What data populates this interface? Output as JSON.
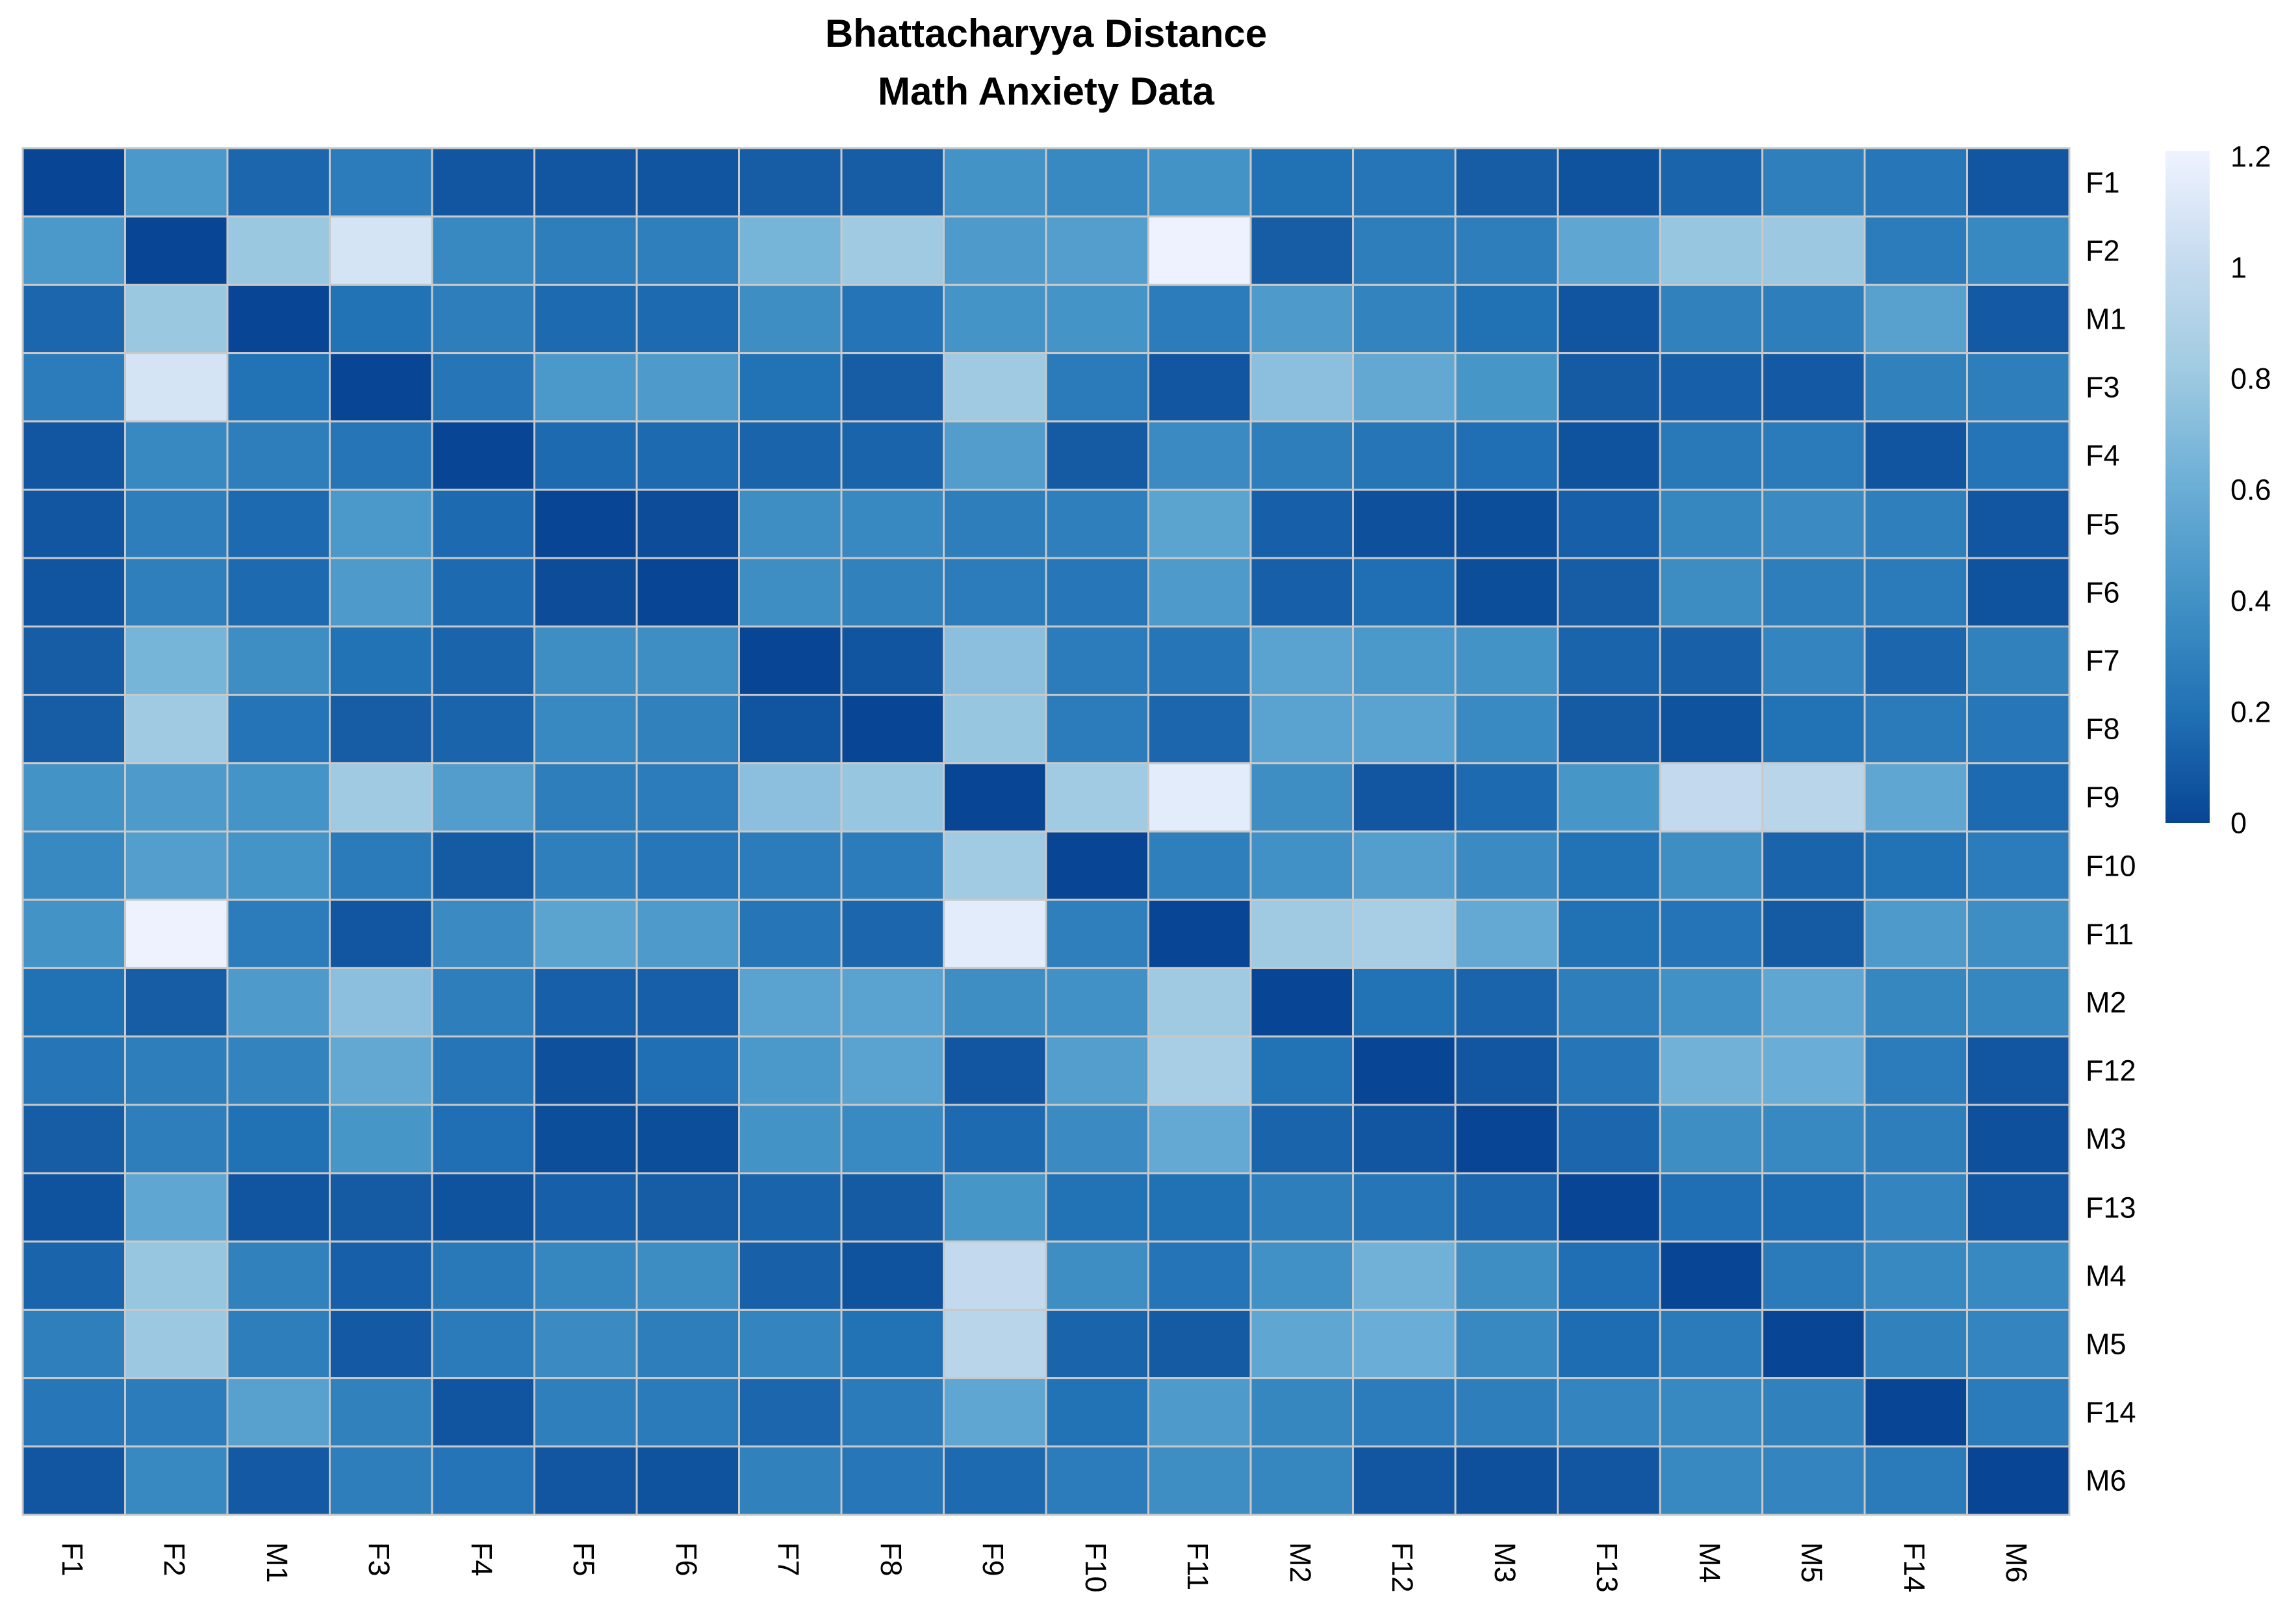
{
  "title": {
    "line1": "Bhattacharyya Distance",
    "line2": "Math Anxiety Data"
  },
  "chart_data": {
    "type": "heatmap",
    "title": "Bhattacharyya Distance",
    "subtitle": "Math Anxiety Data",
    "row_labels": [
      "F1",
      "F2",
      "M1",
      "F3",
      "F4",
      "F5",
      "F6",
      "F7",
      "F8",
      "F9",
      "F10",
      "F11",
      "M2",
      "F12",
      "M3",
      "F13",
      "M4",
      "M5",
      "F14",
      "M6"
    ],
    "col_labels": [
      "F1",
      "F2",
      "M1",
      "F3",
      "F4",
      "F5",
      "F6",
      "F7",
      "F8",
      "F9",
      "F10",
      "F11",
      "M2",
      "F12",
      "M3",
      "F13",
      "M4",
      "M5",
      "F14",
      "M6"
    ],
    "matrix": [
      [
        0.0,
        0.45,
        0.15,
        0.27,
        0.08,
        0.08,
        0.07,
        0.11,
        0.11,
        0.41,
        0.34,
        0.41,
        0.2,
        0.23,
        0.11,
        0.06,
        0.14,
        0.29,
        0.24,
        0.08
      ],
      [
        0.45,
        0.0,
        0.79,
        1.08,
        0.34,
        0.28,
        0.29,
        0.65,
        0.81,
        0.46,
        0.49,
        1.2,
        0.11,
        0.28,
        0.28,
        0.55,
        0.78,
        0.8,
        0.27,
        0.34
      ],
      [
        0.15,
        0.79,
        0.0,
        0.21,
        0.28,
        0.17,
        0.17,
        0.38,
        0.22,
        0.42,
        0.42,
        0.27,
        0.46,
        0.31,
        0.2,
        0.07,
        0.3,
        0.28,
        0.51,
        0.09
      ],
      [
        0.27,
        1.08,
        0.21,
        0.0,
        0.23,
        0.45,
        0.46,
        0.21,
        0.11,
        0.81,
        0.26,
        0.08,
        0.73,
        0.56,
        0.43,
        0.1,
        0.12,
        0.09,
        0.3,
        0.28
      ],
      [
        0.08,
        0.34,
        0.28,
        0.23,
        0.0,
        0.17,
        0.17,
        0.14,
        0.14,
        0.48,
        0.1,
        0.36,
        0.28,
        0.23,
        0.19,
        0.06,
        0.25,
        0.26,
        0.07,
        0.22
      ],
      [
        0.08,
        0.28,
        0.17,
        0.45,
        0.17,
        0.0,
        0.03,
        0.38,
        0.34,
        0.28,
        0.29,
        0.53,
        0.12,
        0.05,
        0.04,
        0.12,
        0.33,
        0.36,
        0.29,
        0.08
      ],
      [
        0.07,
        0.29,
        0.17,
        0.46,
        0.17,
        0.03,
        0.0,
        0.38,
        0.3,
        0.27,
        0.24,
        0.46,
        0.12,
        0.19,
        0.04,
        0.11,
        0.37,
        0.28,
        0.26,
        0.06
      ],
      [
        0.11,
        0.65,
        0.38,
        0.21,
        0.14,
        0.38,
        0.38,
        0.0,
        0.07,
        0.73,
        0.27,
        0.23,
        0.52,
        0.45,
        0.41,
        0.14,
        0.13,
        0.32,
        0.15,
        0.3
      ],
      [
        0.11,
        0.81,
        0.22,
        0.11,
        0.14,
        0.34,
        0.3,
        0.07,
        0.0,
        0.78,
        0.27,
        0.15,
        0.52,
        0.52,
        0.35,
        0.1,
        0.06,
        0.21,
        0.26,
        0.24
      ],
      [
        0.41,
        0.46,
        0.42,
        0.81,
        0.48,
        0.28,
        0.27,
        0.73,
        0.78,
        0.0,
        0.82,
        1.15,
        0.38,
        0.08,
        0.17,
        0.43,
        0.99,
        0.94,
        0.55,
        0.17
      ],
      [
        0.34,
        0.49,
        0.42,
        0.26,
        0.1,
        0.29,
        0.24,
        0.27,
        0.27,
        0.82,
        0.0,
        0.29,
        0.4,
        0.49,
        0.36,
        0.21,
        0.38,
        0.14,
        0.21,
        0.27
      ],
      [
        0.41,
        1.2,
        0.27,
        0.08,
        0.36,
        0.53,
        0.46,
        0.23,
        0.15,
        1.15,
        0.29,
        0.0,
        0.81,
        0.85,
        0.57,
        0.2,
        0.22,
        0.1,
        0.46,
        0.38
      ],
      [
        0.2,
        0.11,
        0.46,
        0.73,
        0.28,
        0.12,
        0.12,
        0.52,
        0.52,
        0.38,
        0.4,
        0.81,
        0.0,
        0.21,
        0.14,
        0.28,
        0.4,
        0.55,
        0.33,
        0.33
      ],
      [
        0.23,
        0.28,
        0.31,
        0.56,
        0.23,
        0.05,
        0.19,
        0.45,
        0.52,
        0.08,
        0.49,
        0.85,
        0.21,
        0.0,
        0.08,
        0.23,
        0.63,
        0.6,
        0.27,
        0.08
      ],
      [
        0.11,
        0.28,
        0.2,
        0.43,
        0.19,
        0.04,
        0.04,
        0.41,
        0.35,
        0.17,
        0.36,
        0.57,
        0.14,
        0.08,
        0.0,
        0.15,
        0.38,
        0.34,
        0.28,
        0.05
      ],
      [
        0.06,
        0.55,
        0.07,
        0.1,
        0.06,
        0.12,
        0.11,
        0.14,
        0.1,
        0.43,
        0.21,
        0.2,
        0.28,
        0.23,
        0.15,
        0.0,
        0.19,
        0.18,
        0.32,
        0.08
      ],
      [
        0.14,
        0.78,
        0.3,
        0.12,
        0.25,
        0.33,
        0.37,
        0.13,
        0.06,
        0.99,
        0.38,
        0.22,
        0.4,
        0.63,
        0.38,
        0.19,
        0.0,
        0.26,
        0.34,
        0.34
      ],
      [
        0.29,
        0.8,
        0.28,
        0.09,
        0.26,
        0.36,
        0.28,
        0.32,
        0.21,
        0.94,
        0.14,
        0.1,
        0.55,
        0.6,
        0.34,
        0.18,
        0.26,
        0.0,
        0.3,
        0.32
      ],
      [
        0.24,
        0.27,
        0.51,
        0.3,
        0.07,
        0.29,
        0.26,
        0.15,
        0.26,
        0.55,
        0.21,
        0.46,
        0.33,
        0.27,
        0.28,
        0.32,
        0.34,
        0.3,
        0.0,
        0.26
      ],
      [
        0.08,
        0.34,
        0.09,
        0.28,
        0.22,
        0.08,
        0.06,
        0.3,
        0.24,
        0.17,
        0.27,
        0.38,
        0.33,
        0.08,
        0.05,
        0.08,
        0.34,
        0.32,
        0.26,
        0.0
      ]
    ],
    "vmin": 0,
    "vmax": 1.21,
    "colorbar_ticks": [
      {
        "value": 0,
        "label": "0"
      },
      {
        "value": 0.2,
        "label": "0.2"
      },
      {
        "value": 0.4,
        "label": "0.4"
      },
      {
        "value": 0.6,
        "label": "0.6"
      },
      {
        "value": 0.8,
        "label": "0.8"
      },
      {
        "value": 1,
        "label": "1"
      },
      {
        "value": 1.2,
        "label": "1.2"
      }
    ],
    "colormap": {
      "name": "blues-reversed",
      "stops": [
        "#084594",
        "#2171b5",
        "#4292c6",
        "#6baed6",
        "#9ecae1",
        "#c6dbef",
        "#eff3ff"
      ]
    },
    "grid_color": "#c9c9c9",
    "background_color": "#ffffff",
    "label_color": "#000000",
    "legend_position": "right",
    "grid": true
  }
}
